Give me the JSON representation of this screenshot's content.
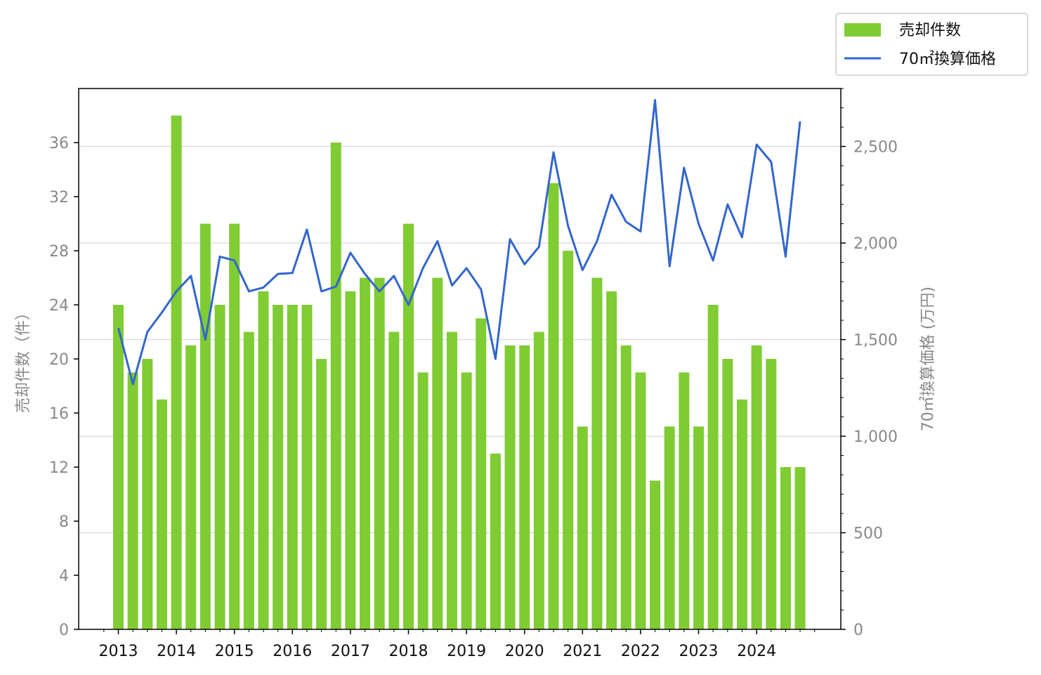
{
  "chart_data": {
    "type": "bar",
    "ylabel_left": "売却件数（件）",
    "ylabel_right": "70㎡換算価格 (万円)",
    "ylim_left": [
      0,
      40
    ],
    "ylim_right": [
      0,
      2800
    ],
    "yticks_left": [
      "0",
      "4",
      "8",
      "12",
      "16",
      "20",
      "24",
      "28",
      "32",
      "36"
    ],
    "yticks_right": [
      "0",
      "500",
      "1,000",
      "1,500",
      "2,000",
      "2,500"
    ],
    "year_labels": [
      "2013",
      "2014",
      "2015",
      "2016",
      "2017",
      "2018",
      "2019",
      "2020",
      "2021",
      "2022",
      "2023",
      "2024"
    ],
    "grid": "horizontal",
    "legend_position": "top-right, outside plot",
    "series": [
      {
        "name": "売却件数",
        "kind": "bar",
        "axis": "left",
        "color": "#7fcc33",
        "values": [
          24,
          19,
          20,
          17,
          38,
          21,
          30,
          24,
          30,
          22,
          25,
          24,
          24,
          24,
          20,
          36,
          25,
          26,
          26,
          22,
          30,
          19,
          26,
          22,
          19,
          23,
          13,
          21,
          21,
          22,
          33,
          28,
          15,
          26,
          25,
          21,
          19,
          11,
          15,
          19,
          15,
          24,
          20,
          17,
          21,
          20,
          12,
          12
        ]
      },
      {
        "name": "70㎡換算価格",
        "kind": "line",
        "axis": "right",
        "color": "#3366cc",
        "values": [
          1560,
          1270,
          1540,
          1640,
          1750,
          1830,
          1500,
          1930,
          1910,
          1750,
          1770,
          1840,
          1845,
          2070,
          1750,
          1775,
          1950,
          1840,
          1750,
          1830,
          1680,
          1870,
          2010,
          1780,
          1870,
          1760,
          1400,
          2020,
          1890,
          1980,
          2470,
          2090,
          1860,
          2010,
          2250,
          2110,
          2060,
          2740,
          1880,
          2390,
          2100,
          1910,
          2200,
          2030,
          2510,
          2420,
          1930,
          2630
        ]
      }
    ]
  }
}
